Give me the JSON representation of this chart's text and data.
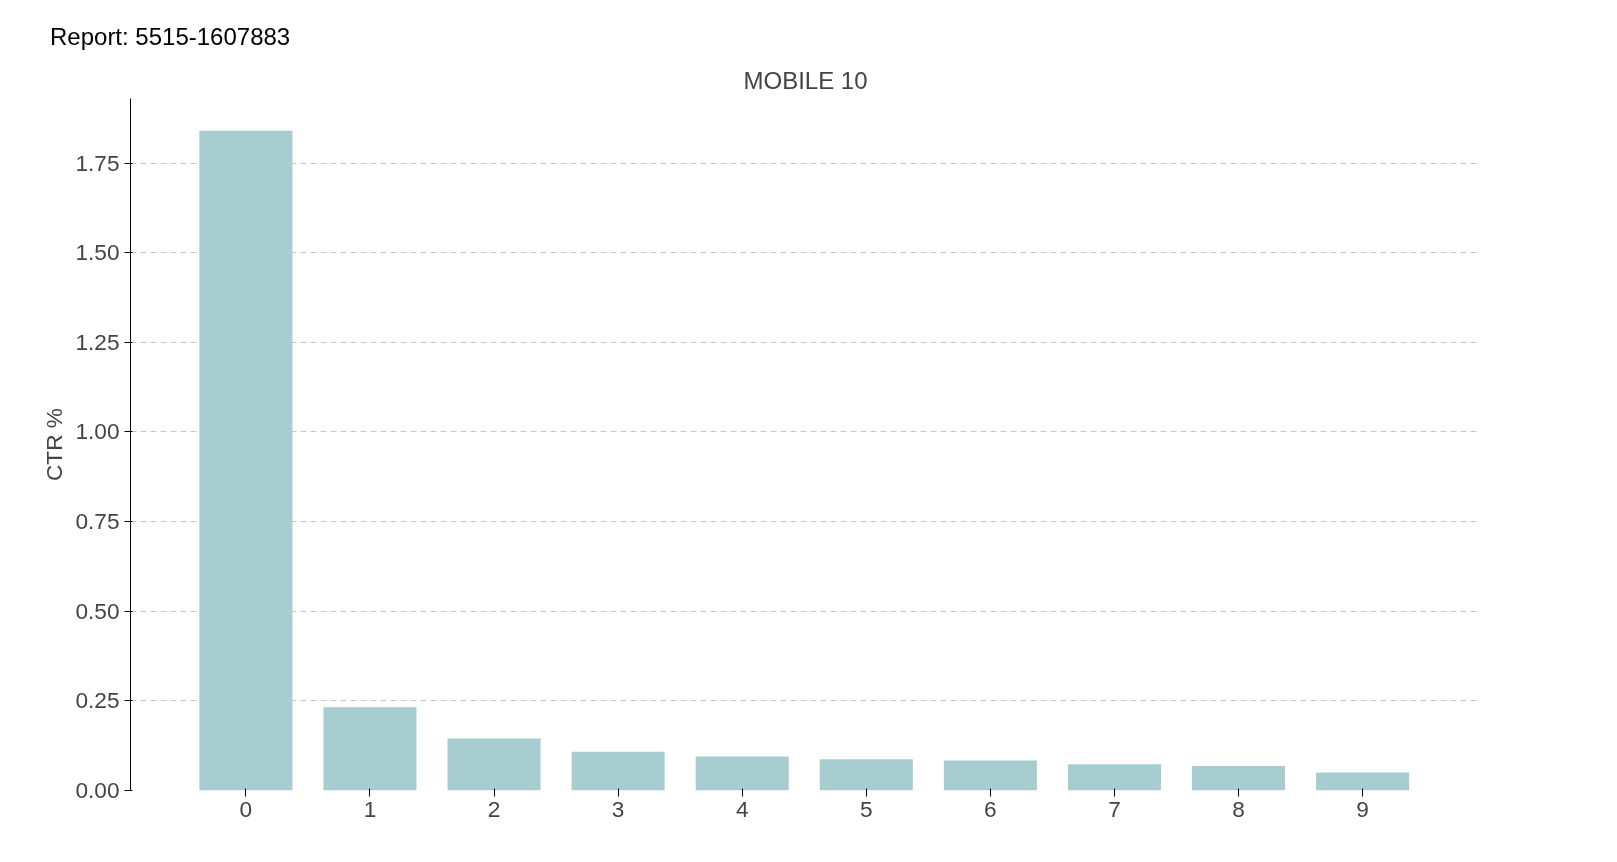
{
  "chart_data": {
    "type": "bar",
    "title": "MOBILE 10",
    "ylabel": "CTR %",
    "annotations": [
      "Report: 5515-1607883"
    ],
    "categories": [
      "0",
      "1",
      "2",
      "3",
      "4",
      "5",
      "6",
      "7",
      "8",
      "9"
    ],
    "values": [
      1.84,
      0.232,
      0.145,
      0.108,
      0.095,
      0.087,
      0.084,
      0.073,
      0.068,
      0.05
    ],
    "color": "#a8cdd0",
    "ylim": [
      0,
      1.93
    ],
    "yticks": [
      {
        "value": 0,
        "label": "0.00"
      },
      {
        "value": 0.25,
        "label": "0.25"
      },
      {
        "value": 0.5,
        "label": "0.50"
      },
      {
        "value": 0.75,
        "label": "0.75"
      },
      {
        "value": 1,
        "label": "1.00"
      },
      {
        "value": 1.25,
        "label": "1.25"
      },
      {
        "value": 1.5,
        "label": "1.50"
      },
      {
        "value": 1.75,
        "label": "1.75"
      }
    ],
    "grid": "y"
  }
}
